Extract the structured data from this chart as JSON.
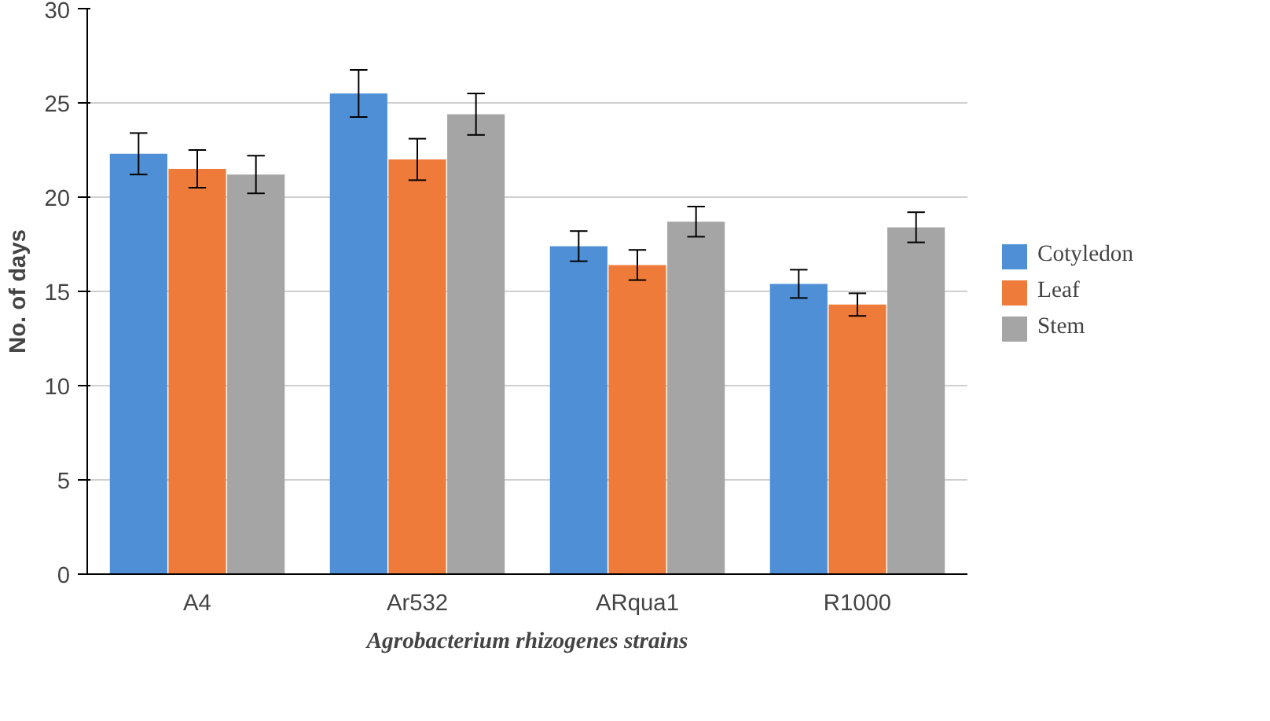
{
  "chart_data": {
    "type": "bar",
    "xlabel": "Agrobacterium rhizogenes strains",
    "ylabel": "No. of days",
    "categories": [
      "A4",
      "Ar532",
      "ARqua1",
      "R1000"
    ],
    "series": [
      {
        "name": "Cotyledon",
        "color": "#4f8fd6",
        "values": [
          22.3,
          25.5,
          17.4,
          15.4
        ],
        "errors": [
          1.1,
          1.25,
          0.8,
          0.75
        ]
      },
      {
        "name": "Leaf",
        "color": "#ef7b3a",
        "values": [
          21.5,
          22.0,
          16.4,
          14.3
        ],
        "errors": [
          1.0,
          1.1,
          0.8,
          0.6
        ]
      },
      {
        "name": "Stem",
        "color": "#a5a5a5",
        "values": [
          21.2,
          24.4,
          18.7,
          18.4
        ],
        "errors": [
          1.0,
          1.1,
          0.8,
          0.8
        ]
      }
    ],
    "ylim": [
      0,
      30
    ],
    "yticks": [
      0,
      5,
      10,
      15,
      20,
      25,
      30
    ],
    "grid": "y",
    "legend": "right"
  }
}
